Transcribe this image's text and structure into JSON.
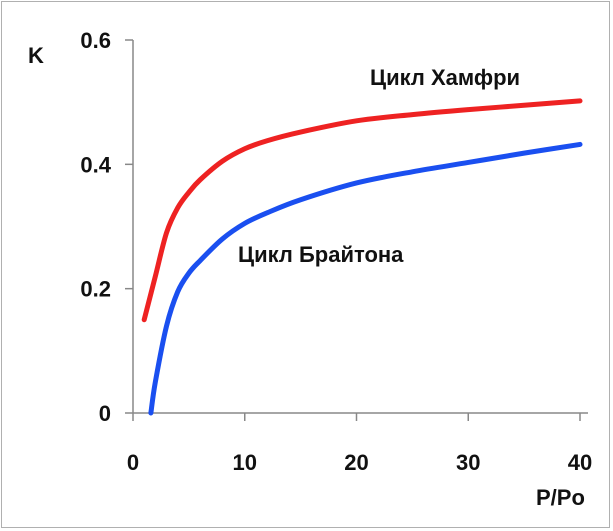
{
  "chart_data": {
    "type": "line",
    "ylabel": "K",
    "xlabel": "P/Po",
    "xlim": [
      0,
      40
    ],
    "ylim": [
      0,
      0.6
    ],
    "x_ticks": [
      "0",
      "10",
      "20",
      "30",
      "40"
    ],
    "y_ticks": [
      "0",
      "0.2",
      "0.4",
      "0.6"
    ],
    "grid": false,
    "series": [
      {
        "name": "Цикл Хамфри",
        "color": "#ee2222",
        "x": [
          1,
          2,
          3,
          4,
          5,
          6,
          8,
          10,
          12,
          15,
          20,
          25,
          30,
          35,
          40
        ],
        "y": [
          0.15,
          0.22,
          0.29,
          0.33,
          0.355,
          0.375,
          0.405,
          0.425,
          0.438,
          0.452,
          0.47,
          0.48,
          0.488,
          0.495,
          0.502
        ]
      },
      {
        "name": "Цикл Брайтона",
        "color": "#1a4ff0",
        "x": [
          1.6,
          2,
          3,
          4,
          5,
          6,
          8,
          10,
          12,
          15,
          20,
          25,
          30,
          35,
          40
        ],
        "y": [
          0.0,
          0.05,
          0.14,
          0.195,
          0.225,
          0.245,
          0.28,
          0.305,
          0.322,
          0.343,
          0.37,
          0.388,
          0.403,
          0.418,
          0.432
        ]
      }
    ]
  }
}
